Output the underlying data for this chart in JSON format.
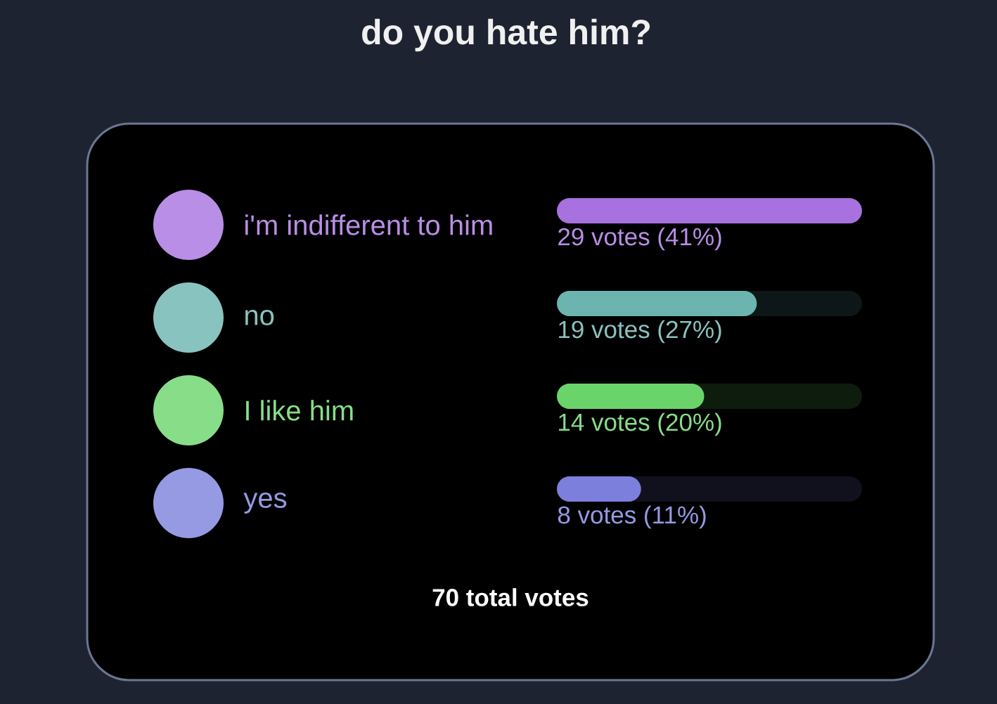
{
  "chart_data": {
    "type": "bar",
    "orientation": "horizontal",
    "title": "do you hate him?",
    "categories": [
      "i'm indifferent to him",
      "no",
      "I like him",
      "yes"
    ],
    "values": [
      29,
      19,
      14,
      8
    ],
    "colors": [
      "#a771e0",
      "#6cb4b0",
      "#6ad46a",
      "#7c80dc"
    ],
    "value_labels": [
      "29 votes (41%)",
      "19 votes (27%)",
      "14 votes (20%)",
      "8 votes (11%)"
    ],
    "xlim": [
      0,
      29
    ],
    "tick_labels": "y",
    "annotations": [
      "70 total votes"
    ]
  }
}
